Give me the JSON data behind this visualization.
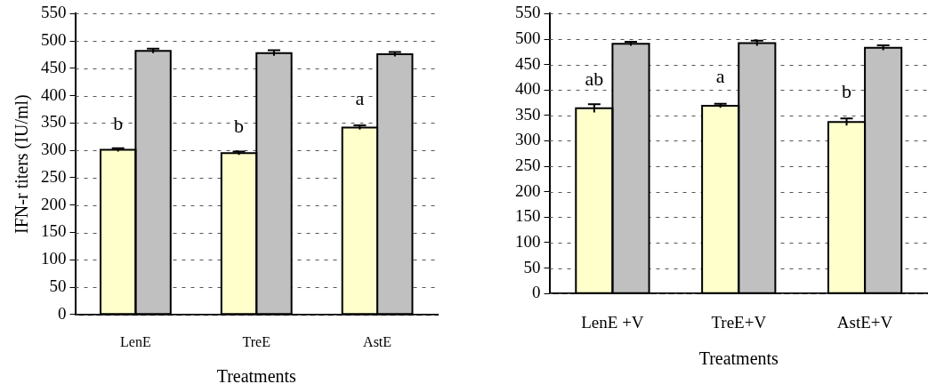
{
  "chart_data": [
    {
      "type": "bar",
      "ylabel": "IFN-r titers (IU/ml)",
      "xlabel": "Treatments",
      "categories": [
        "LenE",
        "TreE",
        "AstE"
      ],
      "series": [
        {
          "color": "#ffffcc",
          "values": [
            301,
            295,
            342
          ],
          "errors": [
            3,
            3,
            4
          ]
        },
        {
          "color": "#c0c0c0",
          "values": [
            482,
            478,
            476
          ],
          "errors": [
            4,
            5,
            4
          ]
        }
      ],
      "ylim": [
        0,
        550
      ],
      "yticks": [
        0,
        50,
        100,
        150,
        200,
        250,
        300,
        350,
        400,
        450,
        500,
        550
      ],
      "grid": "y",
      "legend": false,
      "annotations": [
        {
          "text": "b",
          "x": "LenE",
          "y": 330
        },
        {
          "text": "b",
          "x": "TreE",
          "y": 325
        },
        {
          "text": "a",
          "x": "AstE",
          "y": 375
        }
      ]
    },
    {
      "type": "bar",
      "xlabel": "Treatments",
      "categories": [
        "LenE +V",
        "TreE+V",
        "AstE+V"
      ],
      "series": [
        {
          "color": "#ffffcc",
          "values": [
            364,
            369,
            337
          ],
          "errors": [
            8,
            4,
            7
          ]
        },
        {
          "color": "#c0c0c0",
          "values": [
            491,
            492,
            483
          ],
          "errors": [
            4,
            5,
            5
          ]
        }
      ],
      "ylim": [
        0,
        550
      ],
      "yticks": [
        0,
        50,
        100,
        150,
        200,
        250,
        300,
        350,
        400,
        450,
        500,
        550
      ],
      "grid": "y",
      "legend": false,
      "annotations": [
        {
          "text": "ab",
          "x": "LenE +V",
          "y": 400
        },
        {
          "text": "a",
          "x": "TreE+V",
          "y": 405
        },
        {
          "text": "b",
          "x": "AstE+V",
          "y": 375
        }
      ]
    }
  ]
}
